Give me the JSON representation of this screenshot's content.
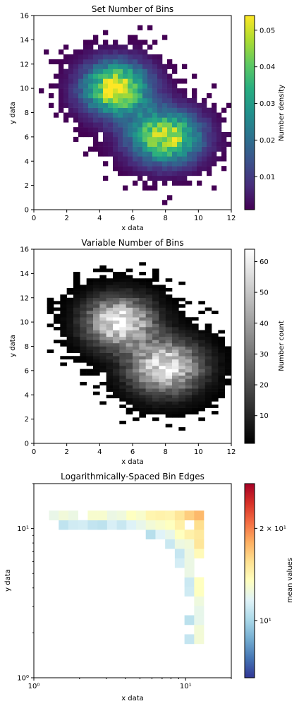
{
  "chart_data": [
    {
      "type": "heatmap",
      "title": "Set Number of Bins",
      "xlabel": "x data",
      "ylabel": "y data",
      "xlim": [
        0,
        12
      ],
      "ylim": [
        0,
        16
      ],
      "xticks": [
        "0",
        "2",
        "4",
        "6",
        "8",
        "10",
        "12"
      ],
      "yticks": [
        "0",
        "2",
        "4",
        "6",
        "8",
        "10",
        "12",
        "14",
        "16"
      ],
      "colormap": "viridis",
      "colorbar_label": "Number density",
      "colorbar_range": [
        0.001,
        0.054
      ],
      "colorbar_ticks": [
        "0.01",
        "0.02",
        "0.03",
        "0.04",
        "0.05"
      ],
      "bins": [
        40,
        40
      ],
      "clusters": [
        {
          "center": [
            5.0,
            10.0
          ],
          "sigma": [
            1.4,
            1.5
          ],
          "peak": 0.054
        },
        {
          "center": [
            8.0,
            6.0
          ],
          "sigma": [
            1.5,
            1.5
          ],
          "peak": 0.05
        }
      ]
    },
    {
      "type": "heatmap",
      "title": "Variable Number of Bins",
      "xlabel": "x data",
      "ylabel": "y data",
      "xlim": [
        0,
        12
      ],
      "ylim": [
        0,
        16
      ],
      "xticks": [
        "0",
        "2",
        "4",
        "6",
        "8",
        "10",
        "12"
      ],
      "yticks": [
        "0",
        "2",
        "4",
        "6",
        "8",
        "10",
        "12",
        "14",
        "16"
      ],
      "colormap": "gray",
      "colorbar_label": "Number count",
      "colorbar_range": [
        1,
        64
      ],
      "colorbar_ticks": [
        "10",
        "20",
        "30",
        "40",
        "50",
        "60"
      ],
      "bins": [
        30,
        60
      ],
      "clusters": [
        {
          "center": [
            5.2,
            10.0
          ],
          "sigma": [
            1.4,
            1.4
          ],
          "peak": 64
        },
        {
          "center": [
            8.0,
            6.3
          ],
          "sigma": [
            1.5,
            1.5
          ],
          "peak": 60
        }
      ]
    },
    {
      "type": "heatmap",
      "title": "Logarithmically-Spaced Bin Edges",
      "xlabel": "x data",
      "ylabel": "y data",
      "xscale": "log",
      "yscale": "log",
      "xlim": [
        1,
        20
      ],
      "ylim": [
        1,
        20
      ],
      "xticks": [
        "10⁰",
        "10¹"
      ],
      "yticks": [
        "10⁰",
        "10¹"
      ],
      "colormap": "RdYlBu_r",
      "colorbar_label": "mean values",
      "colorbar_range": [
        6.5,
        28
      ],
      "colorbar_ticks": [
        "10¹",
        "2 × 10¹"
      ]
    }
  ]
}
